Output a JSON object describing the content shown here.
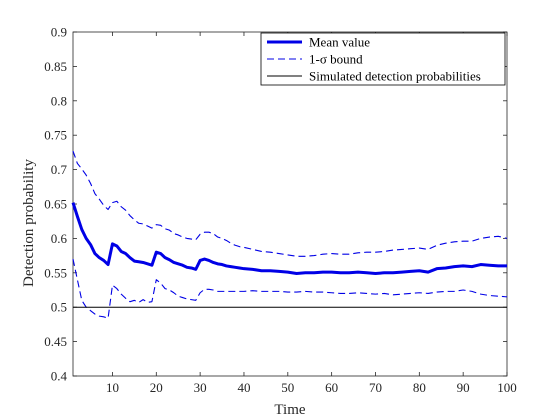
{
  "chart_data": {
    "type": "line",
    "title": "",
    "xlabel": "Time",
    "ylabel": "Detection probability",
    "xlim": [
      1,
      100
    ],
    "ylim": [
      0.4,
      0.9
    ],
    "xticks": [
      10,
      20,
      30,
      40,
      50,
      60,
      70,
      80,
      90,
      100
    ],
    "yticks": [
      0.4,
      0.45,
      0.5,
      0.55,
      0.6,
      0.65,
      0.7,
      0.75,
      0.8,
      0.85,
      0.9
    ],
    "ytick_labels": [
      "0.4",
      "0.45",
      "0.5",
      "0.55",
      "0.6",
      "0.65",
      "0.7",
      "0.75",
      "0.8",
      "0.85",
      "0.9"
    ],
    "grid": false,
    "legend_position": "top-right",
    "legend": [
      {
        "label": "Mean value",
        "style": "thick-solid",
        "color": "#0000e6"
      },
      {
        "label": "1-σ bound",
        "style": "dashed",
        "color": "#0000e6"
      },
      {
        "label": "Simulated detection probabilities",
        "style": "thin-solid",
        "color": "#000000"
      }
    ],
    "series": [
      {
        "name": "Mean value",
        "x": [
          1,
          2,
          3,
          4,
          5,
          6,
          7,
          8,
          9,
          10,
          11,
          12,
          13,
          14,
          15,
          16,
          17,
          18,
          19,
          20,
          21,
          22,
          23,
          24,
          25,
          26,
          27,
          28,
          29,
          30,
          31,
          32,
          33,
          34,
          35,
          36,
          37,
          38,
          39,
          40,
          42,
          44,
          46,
          48,
          50,
          52,
          54,
          56,
          58,
          60,
          62,
          64,
          66,
          68,
          70,
          72,
          74,
          76,
          78,
          80,
          82,
          84,
          86,
          88,
          90,
          92,
          94,
          96,
          98,
          100
        ],
        "y": [
          0.652,
          0.632,
          0.613,
          0.6,
          0.591,
          0.578,
          0.572,
          0.568,
          0.562,
          0.592,
          0.589,
          0.581,
          0.578,
          0.572,
          0.567,
          0.566,
          0.565,
          0.563,
          0.561,
          0.58,
          0.578,
          0.572,
          0.569,
          0.565,
          0.563,
          0.561,
          0.558,
          0.557,
          0.555,
          0.568,
          0.57,
          0.568,
          0.565,
          0.563,
          0.562,
          0.56,
          0.559,
          0.558,
          0.557,
          0.556,
          0.555,
          0.553,
          0.553,
          0.552,
          0.551,
          0.549,
          0.55,
          0.55,
          0.551,
          0.551,
          0.55,
          0.55,
          0.551,
          0.55,
          0.549,
          0.55,
          0.55,
          0.551,
          0.552,
          0.553,
          0.551,
          0.556,
          0.557,
          0.559,
          0.56,
          0.559,
          0.562,
          0.561,
          0.56,
          0.56
        ],
        "color": "#0000e6"
      },
      {
        "name": "1-σ bound (upper)",
        "x": [
          1,
          2,
          3,
          4,
          5,
          6,
          7,
          8,
          9,
          10,
          11,
          12,
          13,
          14,
          15,
          16,
          17,
          18,
          19,
          20,
          21,
          22,
          23,
          24,
          25,
          26,
          27,
          28,
          29,
          30,
          31,
          32,
          33,
          34,
          35,
          36,
          37,
          38,
          39,
          40,
          42,
          44,
          46,
          48,
          50,
          52,
          54,
          56,
          58,
          60,
          62,
          64,
          66,
          68,
          70,
          72,
          74,
          76,
          78,
          80,
          82,
          84,
          86,
          88,
          90,
          92,
          94,
          96,
          98,
          100
        ],
        "y": [
          0.727,
          0.709,
          0.701,
          0.692,
          0.68,
          0.665,
          0.657,
          0.648,
          0.642,
          0.652,
          0.654,
          0.646,
          0.641,
          0.633,
          0.627,
          0.622,
          0.621,
          0.618,
          0.615,
          0.62,
          0.619,
          0.614,
          0.612,
          0.607,
          0.605,
          0.602,
          0.6,
          0.599,
          0.598,
          0.606,
          0.609,
          0.609,
          0.607,
          0.602,
          0.6,
          0.597,
          0.593,
          0.59,
          0.588,
          0.587,
          0.584,
          0.581,
          0.58,
          0.578,
          0.576,
          0.574,
          0.574,
          0.575,
          0.577,
          0.578,
          0.577,
          0.577,
          0.579,
          0.58,
          0.58,
          0.581,
          0.583,
          0.584,
          0.585,
          0.586,
          0.584,
          0.59,
          0.593,
          0.595,
          0.596,
          0.596,
          0.6,
          0.602,
          0.603,
          0.6
        ],
        "color": "#0000e6"
      },
      {
        "name": "1-σ bound (lower)",
        "x": [
          1,
          2,
          3,
          4,
          5,
          6,
          7,
          8,
          9,
          10,
          11,
          12,
          13,
          14,
          15,
          16,
          17,
          18,
          19,
          20,
          21,
          22,
          23,
          24,
          25,
          26,
          27,
          28,
          29,
          30,
          31,
          32,
          33,
          34,
          35,
          36,
          37,
          38,
          39,
          40,
          42,
          44,
          46,
          48,
          50,
          52,
          54,
          56,
          58,
          60,
          62,
          64,
          66,
          68,
          70,
          72,
          74,
          76,
          78,
          80,
          82,
          84,
          86,
          88,
          90,
          92,
          94,
          96,
          98,
          100
        ],
        "y": [
          0.57,
          0.54,
          0.51,
          0.5,
          0.495,
          0.49,
          0.487,
          0.486,
          0.484,
          0.532,
          0.527,
          0.519,
          0.513,
          0.508,
          0.51,
          0.507,
          0.511,
          0.507,
          0.508,
          0.54,
          0.535,
          0.527,
          0.525,
          0.521,
          0.516,
          0.514,
          0.512,
          0.511,
          0.51,
          0.521,
          0.526,
          0.526,
          0.525,
          0.523,
          0.523,
          0.523,
          0.523,
          0.523,
          0.523,
          0.523,
          0.524,
          0.523,
          0.523,
          0.523,
          0.522,
          0.522,
          0.523,
          0.522,
          0.522,
          0.521,
          0.52,
          0.52,
          0.521,
          0.52,
          0.519,
          0.52,
          0.518,
          0.519,
          0.52,
          0.521,
          0.52,
          0.522,
          0.523,
          0.523,
          0.525,
          0.523,
          0.519,
          0.517,
          0.516,
          0.515
        ],
        "color": "#0000e6"
      },
      {
        "name": "Simulated detection probabilities",
        "x": [
          1,
          100
        ],
        "y": [
          0.5,
          0.5
        ],
        "color": "#000000"
      }
    ]
  }
}
